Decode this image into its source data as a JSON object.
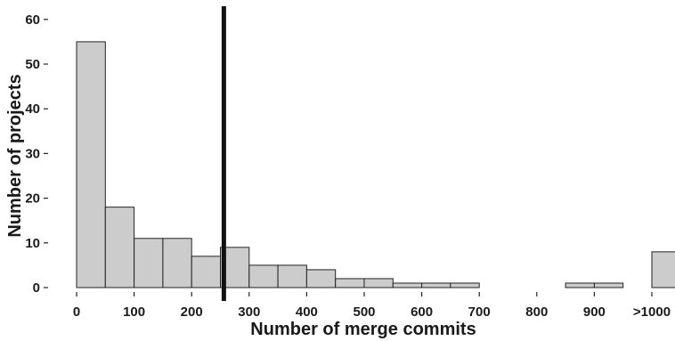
{
  "chart_data": {
    "type": "bar",
    "title": "",
    "xlabel": "Number of merge commits",
    "ylabel": "Number of projects",
    "ylim": [
      0,
      60
    ],
    "yticks": [
      0,
      10,
      20,
      30,
      40,
      50,
      60
    ],
    "xticks": [
      {
        "value": 0,
        "label": "0"
      },
      {
        "value": 100,
        "label": "100"
      },
      {
        "value": 200,
        "label": "200"
      },
      {
        "value": 300,
        "label": "300"
      },
      {
        "value": 400,
        "label": "400"
      },
      {
        "value": 500,
        "label": "500"
      },
      {
        "value": 600,
        "label": "600"
      },
      {
        "value": 700,
        "label": "700"
      },
      {
        "value": 800,
        "label": "800"
      },
      {
        "value": 900,
        "label": "900"
      },
      {
        "value": 1000,
        "label": ">1000"
      }
    ],
    "bin_width": 50,
    "bins": [
      {
        "start": 0,
        "count": 55
      },
      {
        "start": 50,
        "count": 18
      },
      {
        "start": 100,
        "count": 11
      },
      {
        "start": 150,
        "count": 11
      },
      {
        "start": 200,
        "count": 7
      },
      {
        "start": 250,
        "count": 9
      },
      {
        "start": 300,
        "count": 5
      },
      {
        "start": 350,
        "count": 5
      },
      {
        "start": 400,
        "count": 4
      },
      {
        "start": 450,
        "count": 2
      },
      {
        "start": 500,
        "count": 2
      },
      {
        "start": 550,
        "count": 1
      },
      {
        "start": 600,
        "count": 1
      },
      {
        "start": 650,
        "count": 1
      },
      {
        "start": 700,
        "count": 0
      },
      {
        "start": 750,
        "count": 0
      },
      {
        "start": 800,
        "count": 0
      },
      {
        "start": 850,
        "count": 1
      },
      {
        "start": 900,
        "count": 1
      },
      {
        "start": 950,
        "count": 0
      },
      {
        "start": 1000,
        "count": 8
      }
    ],
    "vertical_line_x": 256,
    "grid": false,
    "bar_color": "#cccccc",
    "bar_edge_color": "#222222",
    "line_color": "#111111"
  }
}
